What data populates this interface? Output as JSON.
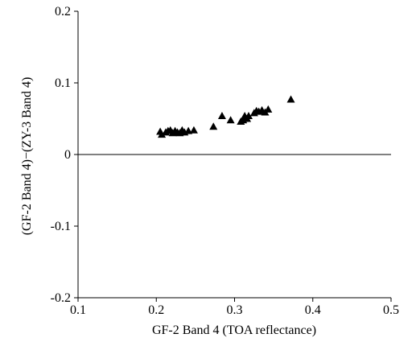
{
  "chart_data": {
    "type": "scatter",
    "title": "",
    "xlabel": "GF-2  Band 4 (TOA reflectance)",
    "ylabel": "(GF-2 Band 4)−(ZY-3  Band 4)",
    "xlim": [
      0.1,
      0.5
    ],
    "ylim": [
      -0.2,
      0.2
    ],
    "xticks": [
      0.1,
      0.2,
      0.3,
      0.4,
      0.5
    ],
    "yticks": [
      -0.2,
      -0.1,
      0,
      0.1,
      0.2
    ],
    "xtick_labels": [
      "0.1",
      "0.2",
      "0.3",
      "0.4",
      "0.5"
    ],
    "ytick_labels": [
      "-0.2",
      "-0.1",
      "0",
      "0.1",
      "0.2"
    ],
    "zero_line": 0,
    "grid": false,
    "marker": "triangle",
    "color": "#000000",
    "series": [
      {
        "points": [
          {
            "x": 0.205,
            "y": 0.032
          },
          {
            "x": 0.207,
            "y": 0.028
          },
          {
            "x": 0.212,
            "y": 0.031
          },
          {
            "x": 0.215,
            "y": 0.033
          },
          {
            "x": 0.218,
            "y": 0.034
          },
          {
            "x": 0.221,
            "y": 0.03
          },
          {
            "x": 0.224,
            "y": 0.033
          },
          {
            "x": 0.227,
            "y": 0.031
          },
          {
            "x": 0.23,
            "y": 0.03
          },
          {
            "x": 0.233,
            "y": 0.034
          },
          {
            "x": 0.236,
            "y": 0.031
          },
          {
            "x": 0.241,
            "y": 0.033
          },
          {
            "x": 0.248,
            "y": 0.034
          },
          {
            "x": 0.273,
            "y": 0.039
          },
          {
            "x": 0.284,
            "y": 0.054
          },
          {
            "x": 0.295,
            "y": 0.048
          },
          {
            "x": 0.308,
            "y": 0.046
          },
          {
            "x": 0.311,
            "y": 0.048
          },
          {
            "x": 0.313,
            "y": 0.054
          },
          {
            "x": 0.316,
            "y": 0.05
          },
          {
            "x": 0.318,
            "y": 0.054
          },
          {
            "x": 0.325,
            "y": 0.058
          },
          {
            "x": 0.328,
            "y": 0.061
          },
          {
            "x": 0.331,
            "y": 0.06
          },
          {
            "x": 0.335,
            "y": 0.062
          },
          {
            "x": 0.339,
            "y": 0.059
          },
          {
            "x": 0.343,
            "y": 0.063
          },
          {
            "x": 0.372,
            "y": 0.077
          }
        ]
      }
    ]
  }
}
